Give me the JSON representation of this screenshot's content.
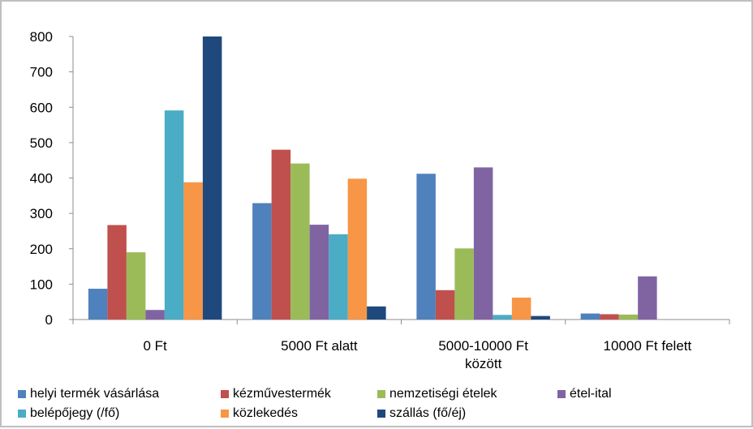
{
  "chart_data": {
    "type": "bar",
    "title": "",
    "xlabel": "",
    "ylabel": "",
    "ylim": [
      0,
      800
    ],
    "yticks": [
      0,
      100,
      200,
      300,
      400,
      500,
      600,
      700,
      800
    ],
    "ytick_labels": [
      "0",
      "100",
      "200",
      "300",
      "400",
      "500",
      "600",
      "700",
      "800"
    ],
    "grid": false,
    "legend_position": "bottom",
    "categories": [
      [
        "0 Ft"
      ],
      [
        "5000 Ft alatt"
      ],
      [
        "5000-10000 Ft",
        "között"
      ],
      [
        "10000 Ft felett"
      ]
    ],
    "series": [
      {
        "name": "helyi termék vásárlása",
        "color": "#4f81bd",
        "values": [
          87,
          329,
          412,
          17
        ]
      },
      {
        "name": "kézművestermék",
        "color": "#c0504d",
        "values": [
          267,
          480,
          83,
          15
        ]
      },
      {
        "name": "nemzetiségi ételek",
        "color": "#9bbb59",
        "values": [
          190,
          441,
          201,
          14
        ]
      },
      {
        "name": "étel-ital",
        "color": "#8064a2",
        "values": [
          27,
          268,
          430,
          122
        ]
      },
      {
        "name": "belépőjegy (/fő)",
        "color": "#4bacc6",
        "values": [
          591,
          241,
          13,
          0
        ]
      },
      {
        "name": "közlekedés",
        "color": "#f79646",
        "values": [
          388,
          398,
          62,
          0
        ]
      },
      {
        "name": "szállás (fő/éj)",
        "color": "#1f497d",
        "values": [
          800,
          37,
          10,
          0
        ]
      }
    ]
  }
}
